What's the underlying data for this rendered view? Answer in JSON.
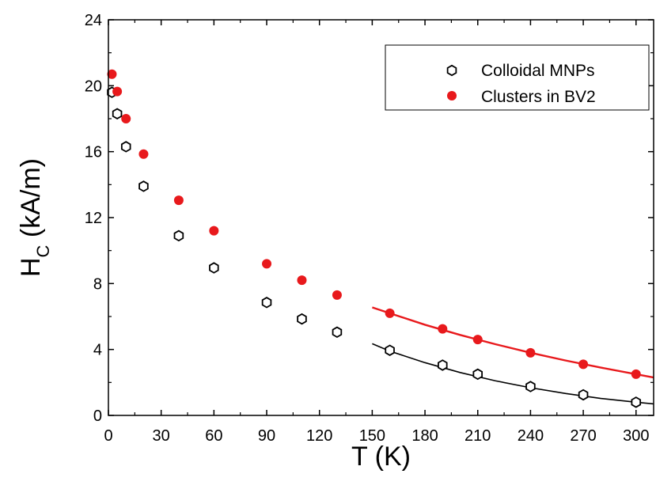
{
  "chart_data": {
    "type": "scatter",
    "xlabel": "T (K)",
    "ylabel": {
      "main": "H",
      "sub": "C",
      "unit": " (kA/m)"
    },
    "xlim": [
      0,
      310
    ],
    "ylim": [
      0,
      24
    ],
    "xticks": [
      0,
      30,
      60,
      90,
      120,
      150,
      180,
      210,
      240,
      270,
      300
    ],
    "yticks": [
      0,
      4,
      8,
      12,
      16,
      20,
      24
    ],
    "grid": false,
    "legend_position": "top-right",
    "series": [
      {
        "name": "Colloidal MNPs",
        "marker": "open-hexagon",
        "color": "#000000",
        "x": [
          2,
          5,
          10,
          20,
          40,
          60,
          90,
          110,
          130,
          160,
          190,
          210,
          240,
          270,
          300
        ],
        "y": [
          19.6,
          18.3,
          16.3,
          13.9,
          10.9,
          8.95,
          6.85,
          5.85,
          5.05,
          3.95,
          3.05,
          2.5,
          1.75,
          1.25,
          0.8
        ],
        "fit": {
          "x": [
            150,
            160,
            180,
            200,
            220,
            240,
            260,
            280,
            300,
            310
          ],
          "y": [
            4.35,
            3.9,
            3.2,
            2.6,
            2.1,
            1.68,
            1.33,
            1.03,
            0.8,
            0.7
          ]
        }
      },
      {
        "name": "Clusters in BV2",
        "marker": "filled-circle",
        "color": "#e8191c",
        "x": [
          2,
          5,
          10,
          20,
          40,
          60,
          90,
          110,
          130,
          160,
          190,
          210,
          240,
          270,
          300
        ],
        "y": [
          20.7,
          19.65,
          18.0,
          15.85,
          13.05,
          11.2,
          9.2,
          8.2,
          7.3,
          6.2,
          5.25,
          4.6,
          3.8,
          3.1,
          2.5
        ],
        "fit": {
          "x": [
            150,
            160,
            180,
            200,
            220,
            240,
            260,
            280,
            300,
            310
          ],
          "y": [
            6.55,
            6.2,
            5.5,
            4.88,
            4.32,
            3.8,
            3.33,
            2.9,
            2.5,
            2.3
          ]
        }
      }
    ]
  }
}
